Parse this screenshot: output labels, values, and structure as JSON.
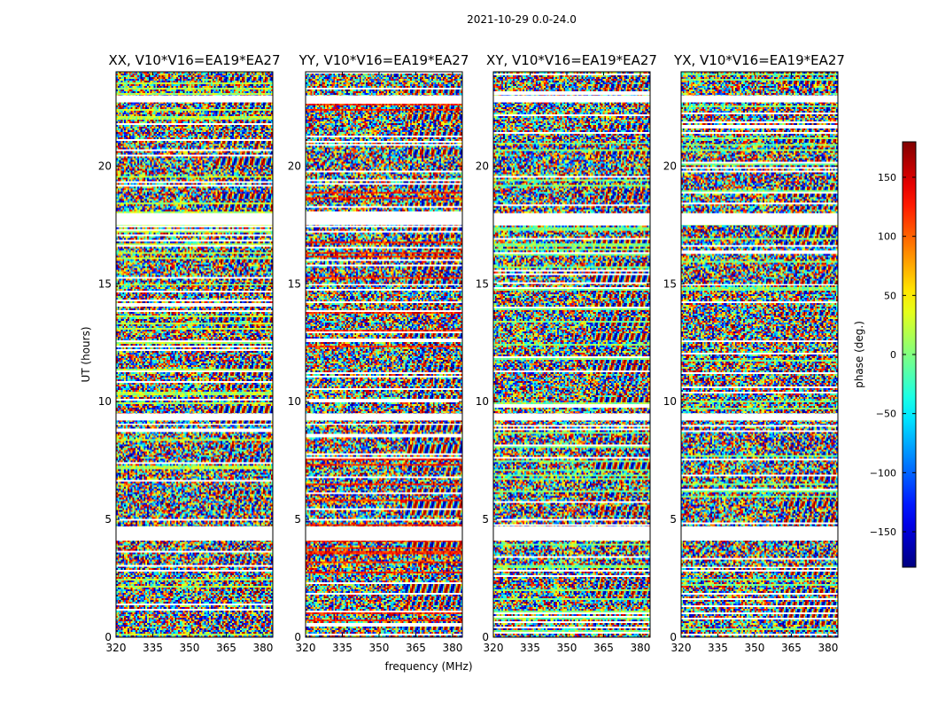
{
  "figure": {
    "suptitle": "2021-10-29 0.0-24.0",
    "xlabel": "frequency (MHz)",
    "ylabel": "UT (hours)"
  },
  "chart_data": {
    "type": "heatmap",
    "value_meaning": "phase (deg.)",
    "colormap": "jet",
    "x_ticks": [
      "320",
      "335",
      "350",
      "365",
      "380"
    ],
    "x_range": [
      320,
      384
    ],
    "y_ticks": [
      "0",
      "5",
      "10",
      "15",
      "20"
    ],
    "y_range": [
      0,
      24
    ],
    "panels": [
      {
        "title": "XX, V10*V16=EA19*EA27"
      },
      {
        "title": "YY, V10*V16=EA19*EA27"
      },
      {
        "title": "XY, V10*V16=EA19*EA27"
      },
      {
        "title": "YX, V10*V16=EA19*EA27"
      }
    ],
    "colorbar": {
      "label": "phase (deg.)",
      "range": [
        -180,
        180
      ],
      "ticks": [
        "150",
        "100",
        "50",
        "0",
        "−50",
        "−100",
        "−150"
      ],
      "tick_values": [
        150,
        100,
        50,
        0,
        -50,
        -100,
        -150
      ]
    },
    "flagged_ut_ranges_hours": [
      [
        4.1,
        4.7
      ],
      [
        9.2,
        9.5
      ],
      [
        17.5,
        18.0
      ],
      [
        22.7,
        23.0
      ]
    ]
  }
}
